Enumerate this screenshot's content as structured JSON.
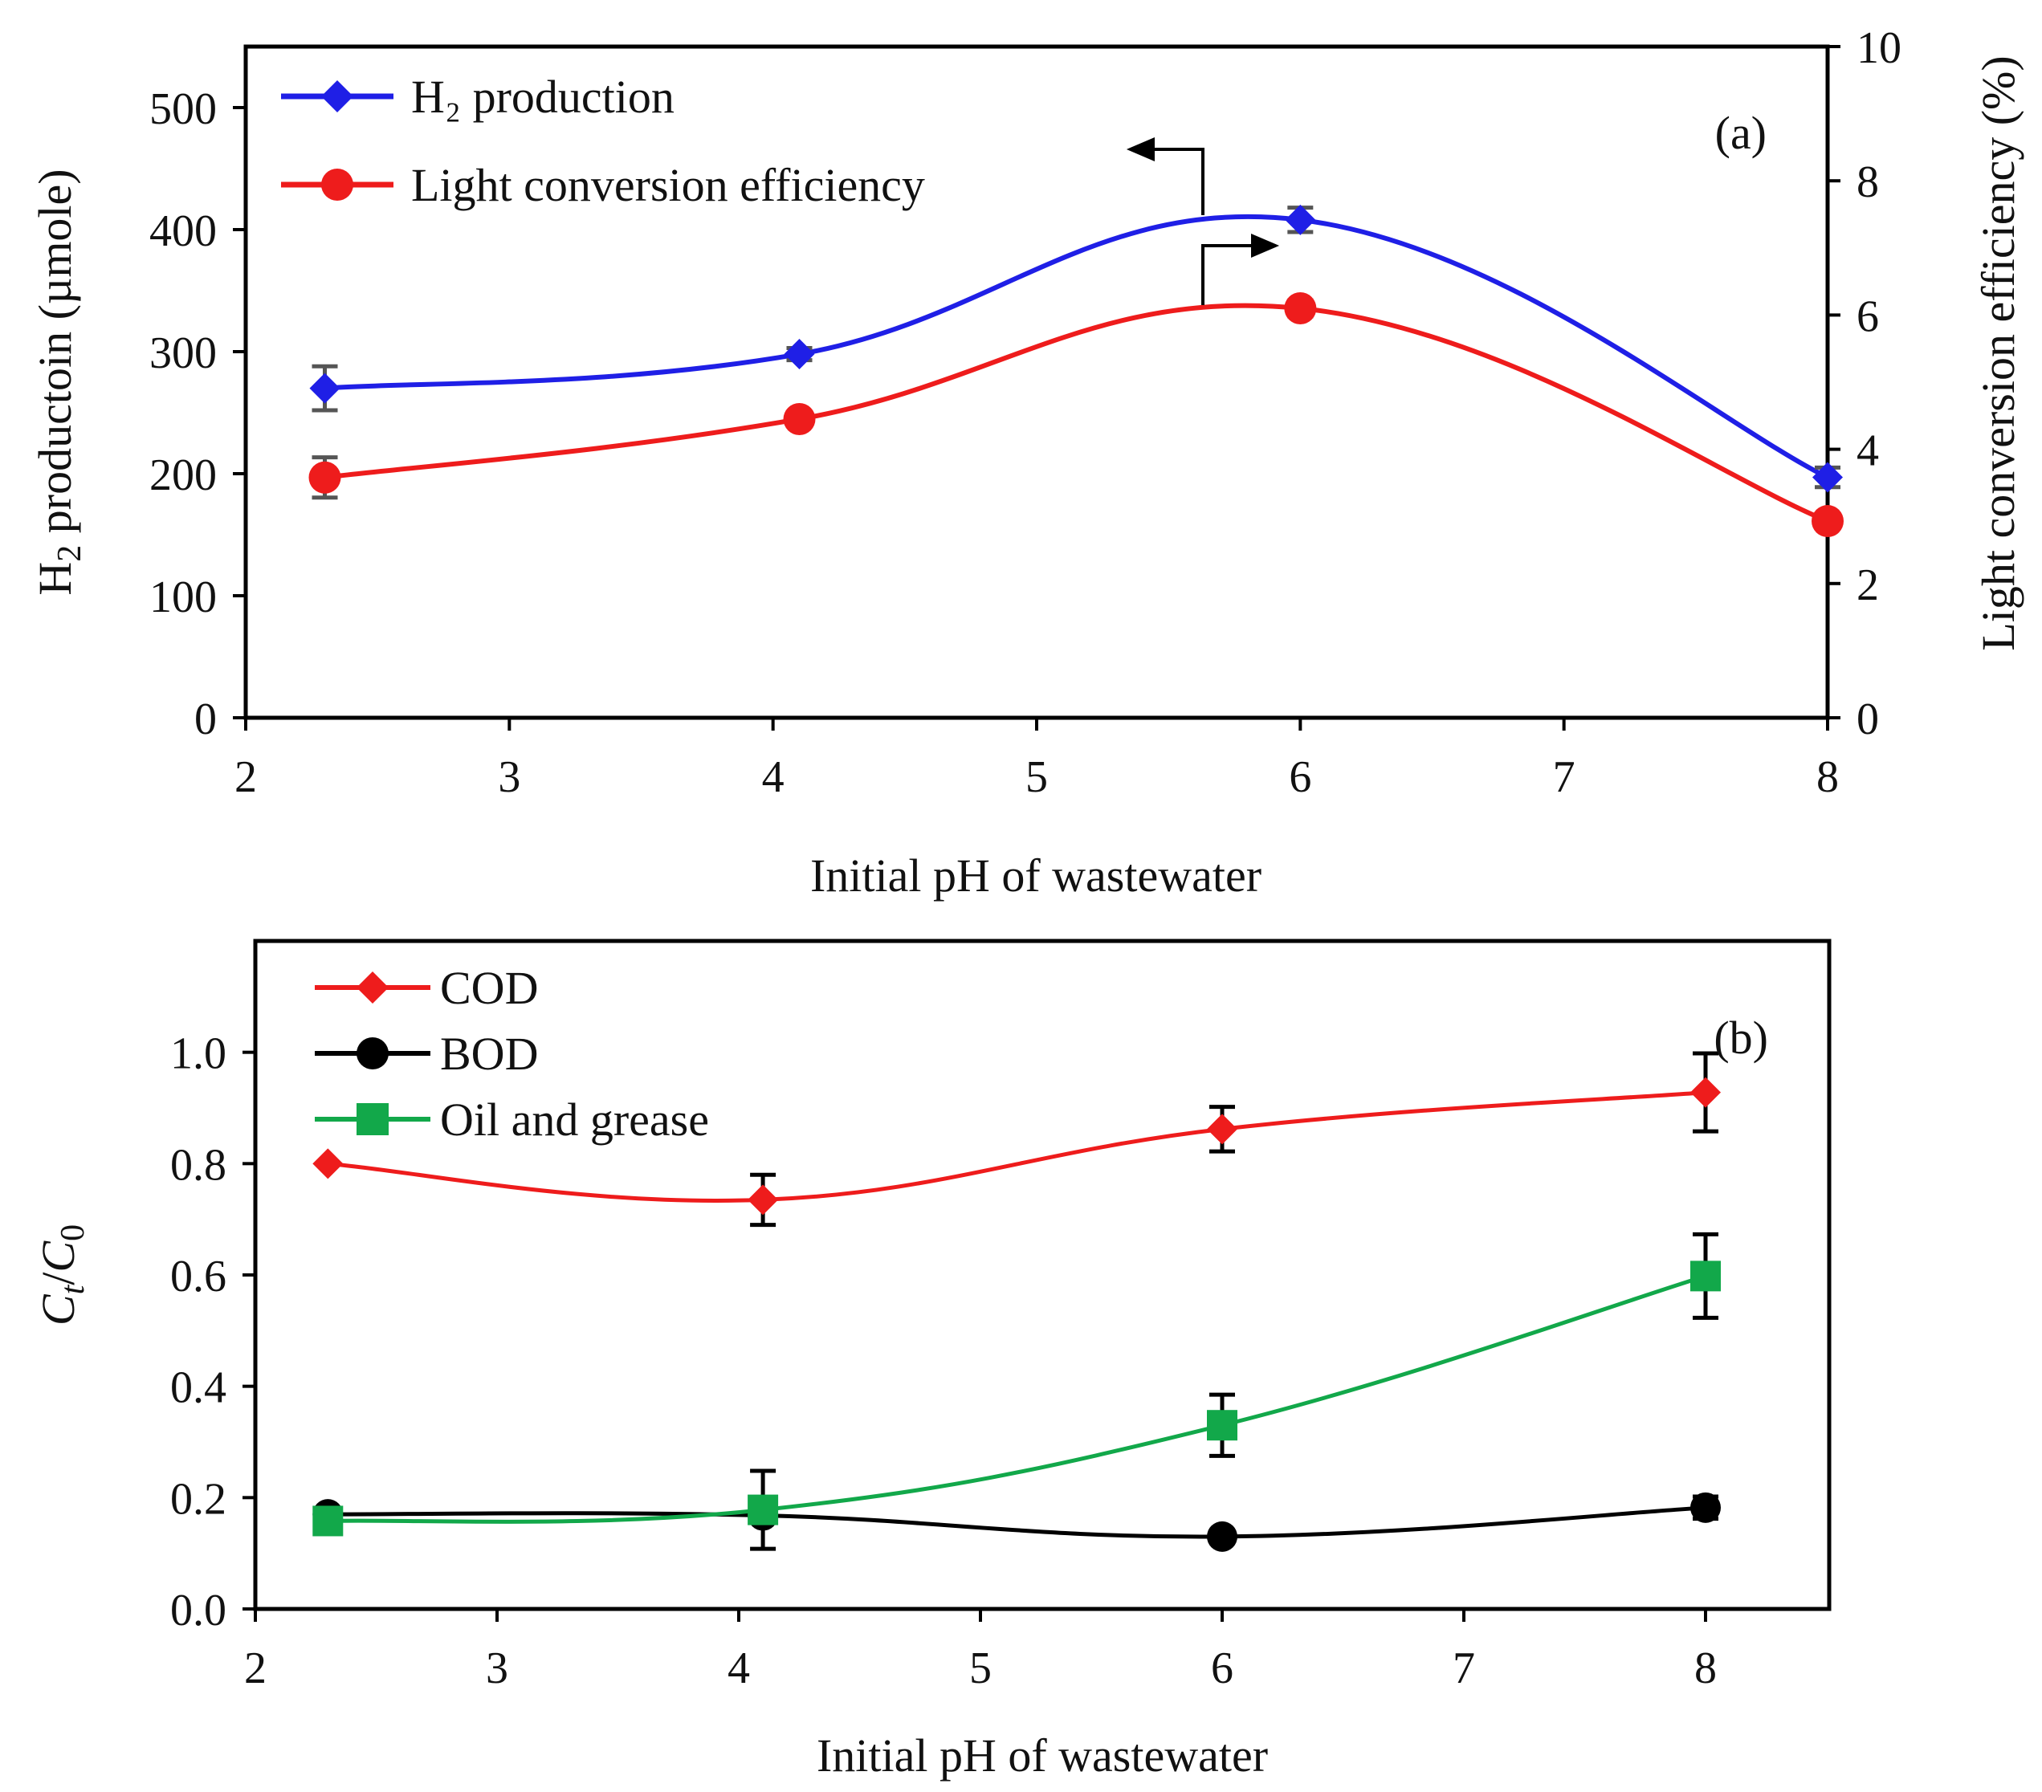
{
  "chart_data": [
    {
      "panel": "(a)",
      "type": "line",
      "xlabel": "Initial pH of wastewater",
      "ylabel": {
        "prefix": "H",
        "sub": "2",
        "rest": " productoin (µmole)"
      },
      "y2label": "Light conversion efficiency (%)",
      "xlim": [
        2,
        8
      ],
      "ylim": [
        0,
        550
      ],
      "y2lim": [
        0,
        10
      ],
      "xticks": [
        2,
        3,
        4,
        5,
        6,
        7,
        8
      ],
      "yticks": [
        0,
        100,
        200,
        300,
        400,
        500
      ],
      "y2ticks": [
        0,
        2,
        4,
        6,
        8,
        10
      ],
      "legend_position": "top-left",
      "annotations": [
        {
          "text": "←",
          "meaning": "arrow pointing left to H2 axis",
          "x": 6
        },
        {
          "text": "→",
          "meaning": "arrow pointing right to efficiency axis",
          "x": 6
        }
      ],
      "series": [
        {
          "name": "H₂ production",
          "axis": "left",
          "color": "#1f1fe6",
          "marker": "diamond",
          "x": [
            2.3,
            4.1,
            6.0,
            8.0
          ],
          "y": [
            270,
            298,
            408,
            197
          ],
          "err": [
            18,
            5,
            10,
            8
          ]
        },
        {
          "name": "Light conversion efficiency",
          "axis": "right",
          "color": "#ee1c1c",
          "marker": "circle",
          "x": [
            2.3,
            4.1,
            6.0,
            8.0
          ],
          "y": [
            3.58,
            4.45,
            6.1,
            2.93
          ],
          "err": [
            0.3,
            0.1,
            0.12,
            0.08
          ]
        }
      ]
    },
    {
      "panel": "(b)",
      "type": "line",
      "xlabel": "Initial pH of wastewater",
      "ylabel": {
        "c1": "C",
        "sub1": "t",
        "slash": "/",
        "c2": "C",
        "sub2": "0"
      },
      "xlim": [
        2,
        8.5
      ],
      "ylim": [
        0,
        1.2
      ],
      "xticks": [
        2,
        3,
        4,
        5,
        6,
        7,
        8
      ],
      "yticks": [
        "0.0",
        "0.2",
        "0.4",
        "0.6",
        "0.8",
        "1.0"
      ],
      "legend_position": "top-left",
      "series": [
        {
          "name": "COD",
          "color": "#ee1c1c",
          "marker": "diamond",
          "x": [
            2.3,
            4.1,
            6.0,
            8.0
          ],
          "y": [
            0.8,
            0.735,
            0.862,
            0.928
          ],
          "err": [
            0,
            0.045,
            0.04,
            0.07
          ]
        },
        {
          "name": "BOD",
          "color": "#000000",
          "marker": "circle",
          "x": [
            2.3,
            4.1,
            6.0,
            8.0
          ],
          "y": [
            0.17,
            0.168,
            0.13,
            0.182
          ],
          "err": [
            0,
            0,
            0,
            0.02
          ]
        },
        {
          "name": "Oil and grease",
          "color": "#12a84a",
          "marker": "square",
          "x": [
            2.3,
            4.1,
            6.0,
            8.0
          ],
          "y": [
            0.158,
            0.178,
            0.33,
            0.598
          ],
          "err": [
            0,
            0.07,
            0.055,
            0.075
          ]
        }
      ]
    }
  ]
}
